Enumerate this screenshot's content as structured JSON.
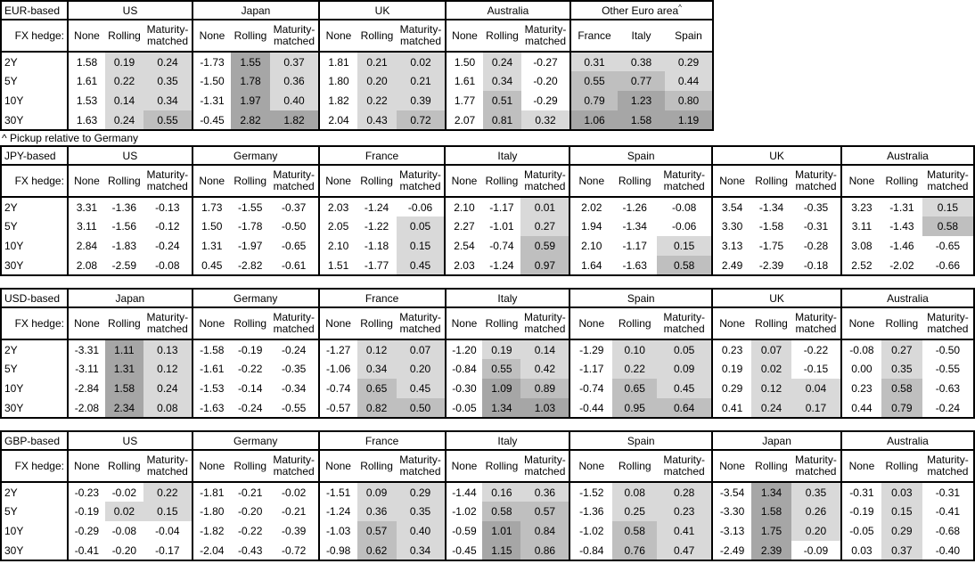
{
  "note": "^ Pickup relative to Germany",
  "columns": {
    "fx_hedge_label": "FX hedge:",
    "subcols": [
      "None",
      "Rolling",
      "Maturity-matched"
    ],
    "row_labels": [
      "2Y",
      "5Y",
      "10Y",
      "30Y"
    ]
  },
  "colors": {
    "background": "#ffffff",
    "border": "#000000",
    "shade_light": "#d9d9d9",
    "shade_medium": "#bfbfbf",
    "shade_dark": "#a6a6a6"
  },
  "shading_rule": "positive values only: 0-0.5 light, 0.5-1.0 medium, >=1.0 dark; None columns unshaded",
  "tables": [
    {
      "base": "EUR-based",
      "groups": [
        {
          "name": "US",
          "values": [
            [
              "1.58",
              "0.19",
              "0.24"
            ],
            [
              "1.61",
              "0.22",
              "0.35"
            ],
            [
              "1.53",
              "0.14",
              "0.34"
            ],
            [
              "1.63",
              "0.24",
              "0.55"
            ]
          ]
        },
        {
          "name": "Japan",
          "values": [
            [
              "-1.73",
              "1.55",
              "0.37"
            ],
            [
              "-1.50",
              "1.78",
              "0.36"
            ],
            [
              "-1.31",
              "1.97",
              "0.40"
            ],
            [
              "-0.45",
              "2.82",
              "1.82"
            ]
          ]
        },
        {
          "name": "UK",
          "values": [
            [
              "1.81",
              "0.21",
              "0.02"
            ],
            [
              "1.80",
              "0.20",
              "0.21"
            ],
            [
              "1.82",
              "0.22",
              "0.39"
            ],
            [
              "2.04",
              "0.43",
              "0.72"
            ]
          ]
        },
        {
          "name": "Australia",
          "values": [
            [
              "1.50",
              "0.24",
              "-0.27"
            ],
            [
              "1.61",
              "0.34",
              "-0.20"
            ],
            [
              "1.77",
              "0.51",
              "-0.29"
            ],
            [
              "2.07",
              "0.81",
              "0.32"
            ]
          ]
        },
        {
          "name": "Other Euro area",
          "sup": "^",
          "subcols": [
            "France",
            "Italy",
            "Spain"
          ],
          "shade_all": true,
          "values": [
            [
              "0.31",
              "0.38",
              "0.29"
            ],
            [
              "0.55",
              "0.77",
              "0.44"
            ],
            [
              "0.79",
              "1.23",
              "0.80"
            ],
            [
              "1.06",
              "1.58",
              "1.19"
            ]
          ]
        }
      ]
    },
    {
      "base": "JPY-based",
      "groups": [
        {
          "name": "US",
          "values": [
            [
              "3.31",
              "-1.36",
              "-0.13"
            ],
            [
              "3.11",
              "-1.56",
              "-0.12"
            ],
            [
              "2.84",
              "-1.83",
              "-0.24"
            ],
            [
              "2.08",
              "-2.59",
              "-0.08"
            ]
          ]
        },
        {
          "name": "Germany",
          "values": [
            [
              "1.73",
              "-1.55",
              "-0.37"
            ],
            [
              "1.50",
              "-1.78",
              "-0.50"
            ],
            [
              "1.31",
              "-1.97",
              "-0.65"
            ],
            [
              "0.45",
              "-2.82",
              "-0.61"
            ]
          ]
        },
        {
          "name": "France",
          "values": [
            [
              "2.03",
              "-1.24",
              "-0.06"
            ],
            [
              "2.05",
              "-1.22",
              "0.05"
            ],
            [
              "2.10",
              "-1.18",
              "0.15"
            ],
            [
              "1.51",
              "-1.77",
              "0.45"
            ]
          ]
        },
        {
          "name": "Italy",
          "values": [
            [
              "2.10",
              "-1.17",
              "0.01"
            ],
            [
              "2.27",
              "-1.01",
              "0.27"
            ],
            [
              "2.54",
              "-0.74",
              "0.59"
            ],
            [
              "2.03",
              "-1.24",
              "0.97"
            ]
          ]
        },
        {
          "name": "Spain",
          "values": [
            [
              "2.02",
              "-1.26",
              "-0.08"
            ],
            [
              "1.94",
              "-1.34",
              "-0.06"
            ],
            [
              "2.10",
              "-1.17",
              "0.15"
            ],
            [
              "1.64",
              "-1.63",
              "0.58"
            ]
          ]
        },
        {
          "name": "UK",
          "values": [
            [
              "3.54",
              "-1.34",
              "-0.35"
            ],
            [
              "3.30",
              "-1.58",
              "-0.31"
            ],
            [
              "3.13",
              "-1.75",
              "-0.28"
            ],
            [
              "2.49",
              "-2.39",
              "-0.18"
            ]
          ]
        },
        {
          "name": "Australia",
          "values": [
            [
              "3.23",
              "-1.31",
              "0.15"
            ],
            [
              "3.11",
              "-1.43",
              "0.58"
            ],
            [
              "3.08",
              "-1.46",
              "-0.65"
            ],
            [
              "2.52",
              "-2.02",
              "-0.66"
            ]
          ]
        }
      ]
    },
    {
      "base": "USD-based",
      "groups": [
        {
          "name": "Japan",
          "values": [
            [
              "-3.31",
              "1.11",
              "0.13"
            ],
            [
              "-3.11",
              "1.31",
              "0.12"
            ],
            [
              "-2.84",
              "1.58",
              "0.24"
            ],
            [
              "-2.08",
              "2.34",
              "0.08"
            ]
          ]
        },
        {
          "name": "Germany",
          "values": [
            [
              "-1.58",
              "-0.19",
              "-0.24"
            ],
            [
              "-1.61",
              "-0.22",
              "-0.35"
            ],
            [
              "-1.53",
              "-0.14",
              "-0.34"
            ],
            [
              "-1.63",
              "-0.24",
              "-0.55"
            ]
          ]
        },
        {
          "name": "France",
          "values": [
            [
              "-1.27",
              "0.12",
              "0.07"
            ],
            [
              "-1.06",
              "0.34",
              "0.20"
            ],
            [
              "-0.74",
              "0.65",
              "0.45"
            ],
            [
              "-0.57",
              "0.82",
              "0.50"
            ]
          ]
        },
        {
          "name": "Italy",
          "values": [
            [
              "-1.20",
              "0.19",
              "0.14"
            ],
            [
              "-0.84",
              "0.55",
              "0.42"
            ],
            [
              "-0.30",
              "1.09",
              "0.89"
            ],
            [
              "-0.05",
              "1.34",
              "1.03"
            ]
          ]
        },
        {
          "name": "Spain",
          "values": [
            [
              "-1.29",
              "0.10",
              "0.05"
            ],
            [
              "-1.17",
              "0.22",
              "0.09"
            ],
            [
              "-0.74",
              "0.65",
              "0.45"
            ],
            [
              "-0.44",
              "0.95",
              "0.64"
            ]
          ]
        },
        {
          "name": "UK",
          "values": [
            [
              "0.23",
              "0.07",
              "-0.22"
            ],
            [
              "0.19",
              "0.02",
              "-0.15"
            ],
            [
              "0.29",
              "0.12",
              "0.04"
            ],
            [
              "0.41",
              "0.24",
              "0.17"
            ]
          ]
        },
        {
          "name": "Australia",
          "values": [
            [
              "-0.08",
              "0.27",
              "-0.50"
            ],
            [
              "0.00",
              "0.35",
              "-0.55"
            ],
            [
              "0.23",
              "0.58",
              "-0.63"
            ],
            [
              "0.44",
              "0.79",
              "-0.24"
            ]
          ]
        }
      ]
    },
    {
      "base": "GBP-based",
      "groups": [
        {
          "name": "US",
          "values": [
            [
              "-0.23",
              "-0.02",
              "0.22"
            ],
            [
              "-0.19",
              "0.02",
              "0.15"
            ],
            [
              "-0.29",
              "-0.08",
              "-0.04"
            ],
            [
              "-0.41",
              "-0.20",
              "-0.17"
            ]
          ]
        },
        {
          "name": "Germany",
          "values": [
            [
              "-1.81",
              "-0.21",
              "-0.02"
            ],
            [
              "-1.80",
              "-0.20",
              "-0.21"
            ],
            [
              "-1.82",
              "-0.22",
              "-0.39"
            ],
            [
              "-2.04",
              "-0.43",
              "-0.72"
            ]
          ]
        },
        {
          "name": "France",
          "values": [
            [
              "-1.51",
              "0.09",
              "0.29"
            ],
            [
              "-1.24",
              "0.36",
              "0.35"
            ],
            [
              "-1.03",
              "0.57",
              "0.40"
            ],
            [
              "-0.98",
              "0.62",
              "0.34"
            ]
          ]
        },
        {
          "name": "Italy",
          "values": [
            [
              "-1.44",
              "0.16",
              "0.36"
            ],
            [
              "-1.02",
              "0.58",
              "0.57"
            ],
            [
              "-0.59",
              "1.01",
              "0.84"
            ],
            [
              "-0.45",
              "1.15",
              "0.86"
            ]
          ]
        },
        {
          "name": "Spain",
          "values": [
            [
              "-1.52",
              "0.08",
              "0.28"
            ],
            [
              "-1.36",
              "0.25",
              "0.23"
            ],
            [
              "-1.02",
              "0.58",
              "0.41"
            ],
            [
              "-0.84",
              "0.76",
              "0.47"
            ]
          ]
        },
        {
          "name": "Japan",
          "values": [
            [
              "-3.54",
              "1.34",
              "0.35"
            ],
            [
              "-3.30",
              "1.58",
              "0.26"
            ],
            [
              "-3.13",
              "1.75",
              "0.20"
            ],
            [
              "-2.49",
              "2.39",
              "-0.09"
            ]
          ]
        },
        {
          "name": "Australia",
          "values": [
            [
              "-0.31",
              "0.03",
              "-0.31"
            ],
            [
              "-0.19",
              "0.15",
              "-0.41"
            ],
            [
              "-0.05",
              "0.29",
              "-0.68"
            ],
            [
              "0.03",
              "0.37",
              "-0.40"
            ]
          ]
        }
      ]
    }
  ]
}
